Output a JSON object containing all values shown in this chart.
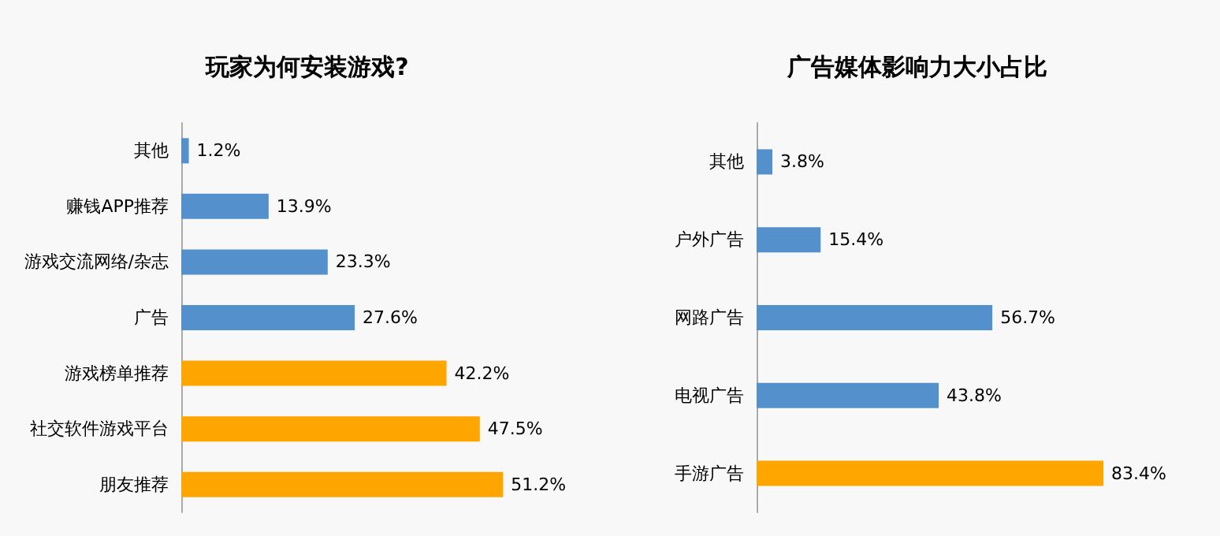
{
  "chart_data": [
    {
      "type": "bar",
      "orientation": "horizontal",
      "title": "玩家为何安装游戏?",
      "categories": [
        "其他",
        "赚钱APP推荐",
        "游戏交流网络/杂志",
        "广告",
        "游戏榜单推荐",
        "社交软件游戏平台",
        "朋友推荐"
      ],
      "values": [
        1.2,
        13.9,
        23.3,
        27.6,
        42.2,
        47.5,
        51.2
      ],
      "colors": [
        "#5490cc",
        "#5490cc",
        "#5490cc",
        "#5490cc",
        "#ffa500",
        "#ffa500",
        "#ffa500"
      ],
      "value_labels": [
        "1.2%",
        "13.9%",
        "23.3%",
        "27.6%",
        "42.2%",
        "47.5%",
        "51.2%"
      ]
    },
    {
      "type": "bar",
      "orientation": "horizontal",
      "title": "广告媒体影响力大小占比",
      "categories": [
        "其他",
        "户外广告",
        "网路广告",
        "电视广告",
        "手游广告"
      ],
      "values": [
        3.8,
        15.4,
        56.7,
        43.8,
        83.4
      ],
      "colors": [
        "#5490cc",
        "#5490cc",
        "#5490cc",
        "#5490cc",
        "#ffa500"
      ],
      "value_labels": [
        "3.8%",
        "15.4%",
        "56.7%",
        "43.8%",
        "83.4%"
      ]
    }
  ]
}
